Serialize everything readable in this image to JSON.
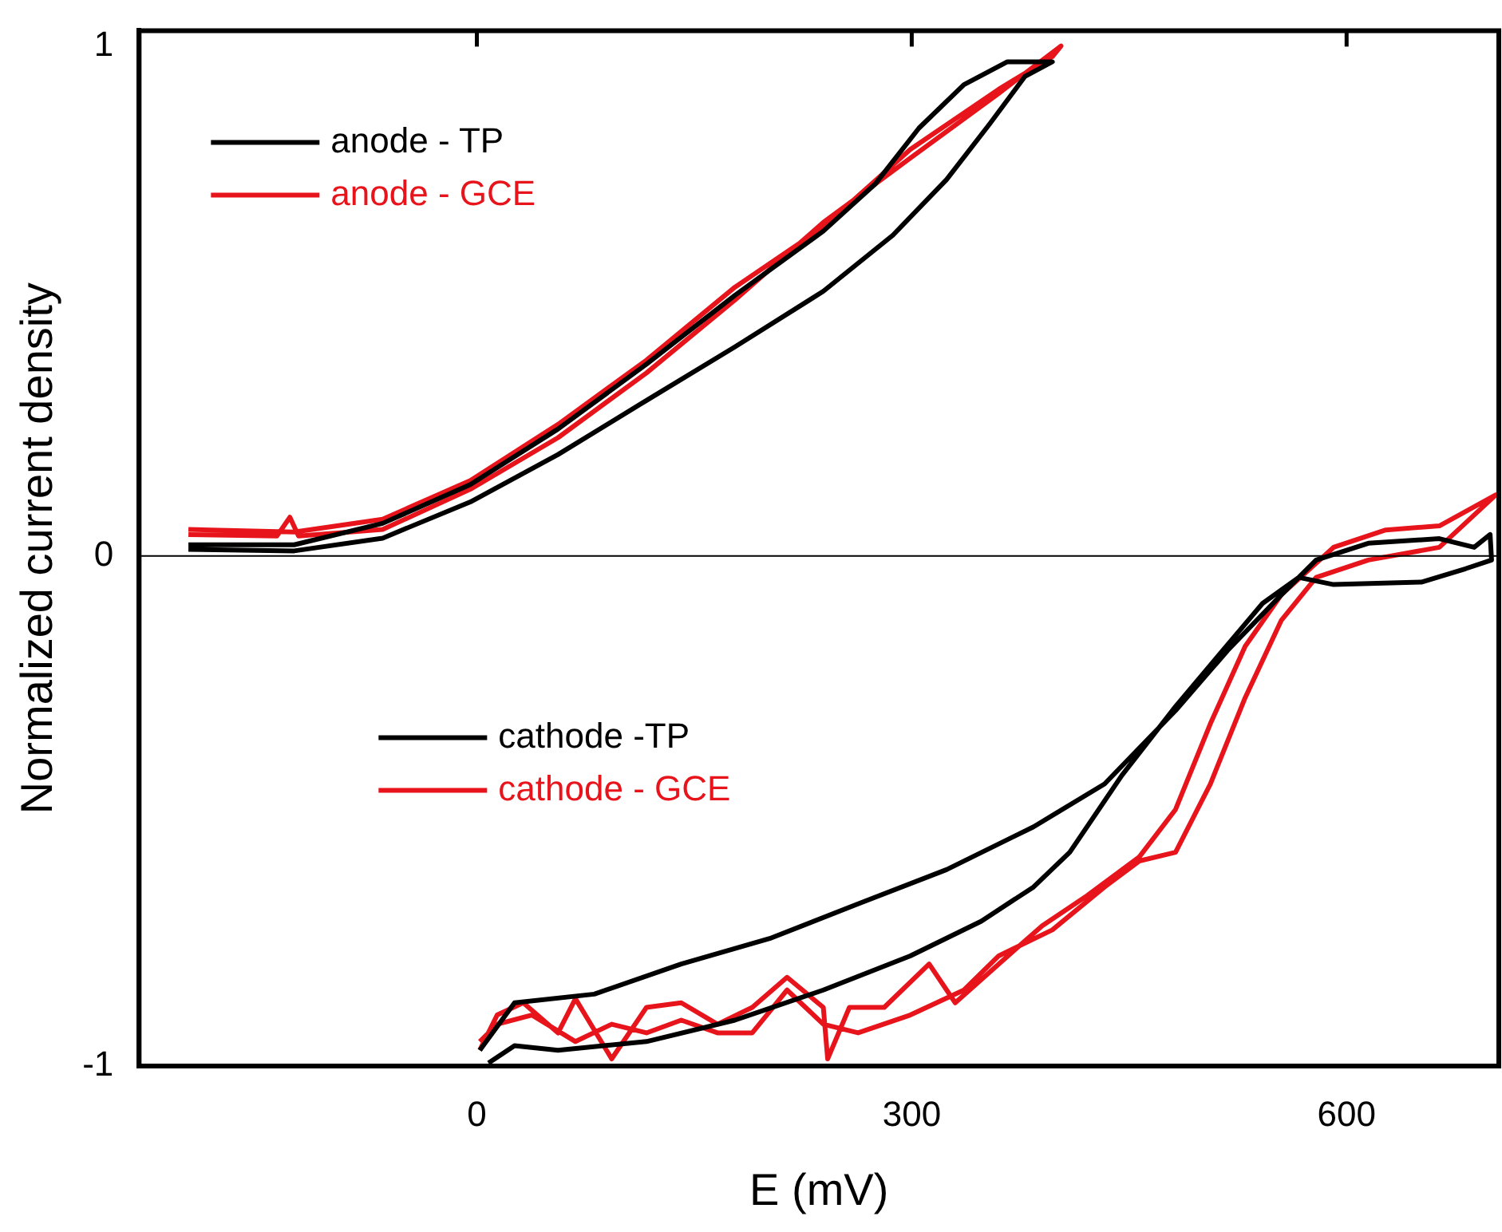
{
  "chart_data": {
    "type": "line",
    "xlabel": "E (mV)",
    "ylabel": "Normalized current density",
    "xlim": [
      -233,
      705
    ],
    "ylim": [
      -1,
      1.03
    ],
    "xticks": [
      0,
      300,
      600
    ],
    "yticks": [
      -1,
      0,
      1
    ],
    "grid": false,
    "legend": "left",
    "marker": "none",
    "line_style": "solid",
    "ref_lines": [
      {
        "axis": "y",
        "value": 0,
        "color": "#000000"
      }
    ],
    "series": [
      {
        "name": "anode - TP",
        "color": "#000000",
        "x": [
          -199,
          -126,
          -65,
          -4.5,
          56,
          117,
          178,
          239,
          287,
          324,
          354,
          378,
          397,
          366,
          336,
          305,
          275,
          239,
          178,
          117,
          56,
          -4.5,
          -65,
          -126,
          -199
        ],
        "values": [
          0.013,
          0.01,
          0.035,
          0.106,
          0.199,
          0.305,
          0.41,
          0.519,
          0.629,
          0.738,
          0.848,
          0.94,
          0.969,
          0.969,
          0.924,
          0.839,
          0.73,
          0.637,
          0.511,
          0.376,
          0.249,
          0.14,
          0.064,
          0.022,
          0.022
        ]
      },
      {
        "name": "anode - GCE",
        "color": "#e8141c",
        "x": [
          -199,
          -138,
          -129,
          -123,
          -65,
          -4.5,
          56,
          117,
          178,
          239,
          299,
          360,
          403,
          397,
          360,
          299,
          239,
          178,
          117,
          56,
          -4.5,
          -65,
          -126,
          -199
        ],
        "values": [
          0.042,
          0.039,
          0.076,
          0.039,
          0.052,
          0.131,
          0.232,
          0.359,
          0.502,
          0.654,
          0.78,
          0.907,
          1.0,
          0.979,
          0.915,
          0.797,
          0.645,
          0.527,
          0.384,
          0.258,
          0.148,
          0.072,
          0.047,
          0.052
        ]
      },
      {
        "name": "cathode -TP",
        "color": "#000000",
        "x": [
          2,
          26,
          81,
          141,
          202,
          263,
          324,
          384,
          433,
          482,
          518,
          555,
          579,
          615,
          664,
          688,
          699,
          700,
          682,
          652,
          591,
          567,
          542,
          512,
          482,
          445,
          409,
          384,
          348,
          299,
          239,
          178,
          117,
          56,
          26,
          8
        ],
        "values": [
          -0.969,
          -0.876,
          -0.859,
          -0.8,
          -0.75,
          -0.682,
          -0.615,
          -0.531,
          -0.447,
          -0.303,
          -0.185,
          -0.076,
          -0.008,
          0.025,
          0.034,
          0.017,
          0.042,
          -0.008,
          -0.025,
          -0.051,
          -0.056,
          -0.042,
          -0.093,
          -0.194,
          -0.295,
          -0.43,
          -0.581,
          -0.649,
          -0.716,
          -0.784,
          -0.851,
          -0.91,
          -0.952,
          -0.969,
          -0.96,
          -0.994
        ]
      },
      {
        "name": "cathode - GCE",
        "color": "#e8141c",
        "x": [
          2,
          14,
          32,
          56,
          68,
          93,
          117,
          141,
          166,
          190,
          214,
          239,
          242,
          257,
          281,
          312,
          330,
          360,
          390,
          421,
          457,
          482,
          506,
          530,
          555,
          591,
          627,
          664,
          703,
          664,
          615,
          579,
          555,
          530,
          506,
          482,
          457,
          433,
          397,
          360,
          336,
          299,
          263,
          239,
          214,
          190,
          166,
          141,
          117,
          93,
          68,
          38,
          14,
          2
        ],
        "values": [
          -0.969,
          -0.9,
          -0.876,
          -0.935,
          -0.868,
          -0.986,
          -0.885,
          -0.876,
          -0.918,
          -0.885,
          -0.826,
          -0.885,
          -0.986,
          -0.885,
          -0.885,
          -0.8,
          -0.876,
          -0.8,
          -0.725,
          -0.666,
          -0.59,
          -0.497,
          -0.329,
          -0.177,
          -0.076,
          0.017,
          0.051,
          0.059,
          0.12,
          0.017,
          -0.008,
          -0.042,
          -0.126,
          -0.278,
          -0.447,
          -0.581,
          -0.598,
          -0.649,
          -0.733,
          -0.784,
          -0.851,
          -0.9,
          -0.935,
          -0.918,
          -0.851,
          -0.935,
          -0.935,
          -0.91,
          -0.935,
          -0.918,
          -0.952,
          -0.9,
          -0.918,
          -0.952
        ]
      }
    ]
  }
}
